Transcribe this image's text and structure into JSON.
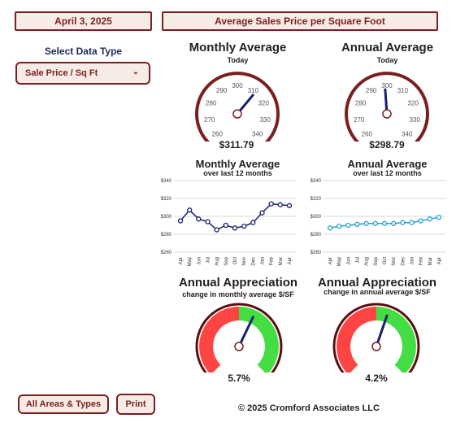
{
  "header": {
    "date": "April 3, 2025",
    "title": "Average Sales Price per Square Foot"
  },
  "sidebar": {
    "select_label": "Select Data Type",
    "dropdown_value": "Sale Price / Sq Ft"
  },
  "gauges": {
    "monthly": {
      "title": "Monthly Average",
      "subtitle": "Today",
      "ticks": [
        "260",
        "270",
        "280",
        "290",
        "300",
        "310",
        "320",
        "330",
        "340"
      ],
      "min": 260,
      "max": 340,
      "value": 311.79,
      "value_label": "$311.79"
    },
    "annual": {
      "title": "Annual Average",
      "subtitle": "Today",
      "ticks": [
        "260",
        "270",
        "280",
        "290",
        "300",
        "310",
        "320",
        "330",
        "340"
      ],
      "min": 260,
      "max": 340,
      "value": 298.79,
      "value_label": "$298.79"
    }
  },
  "line_titles": {
    "monthly": {
      "title": "Monthly Average",
      "subtitle": "over last 12 months"
    },
    "annual": {
      "title": "Annual Average",
      "subtitle": "over last 12 months"
    }
  },
  "appreciation": {
    "monthly": {
      "title": "Annual Appreciation",
      "subtitle": "change in monthly average $/SF",
      "value": 5.7,
      "value_label": "5.7%"
    },
    "annual": {
      "title": "Annual Appreciation",
      "subtitle": "change in annual average $/SF",
      "value": 4.2,
      "value_label": "4.2%"
    }
  },
  "buttons": {
    "areas": "All Areas & Types",
    "print": "Print"
  },
  "footer": "© 2025 Cromford Associates LLC",
  "colors": {
    "accent": "#7a1f1f",
    "navy": "#1a1f6e",
    "light_blue": "#2a9fd6",
    "green": "#44dd44",
    "red": "#ff4444"
  },
  "chart_data": [
    {
      "type": "line",
      "name": "monthly",
      "categories": [
        "Apr",
        "May",
        "Jun",
        "Jul",
        "Aug",
        "Sep",
        "Oct",
        "Nov",
        "Dec",
        "Jan",
        "Feb",
        "Mar",
        "Apr"
      ],
      "values": [
        295,
        307,
        297,
        294,
        285,
        290,
        287,
        289,
        293,
        304,
        314,
        313,
        312
      ],
      "yticks": [
        "$340",
        "$320",
        "$300",
        "$280",
        "$260"
      ],
      "ylim": [
        260,
        340
      ],
      "grid": true
    },
    {
      "type": "line",
      "name": "annual",
      "categories": [
        "Apr",
        "May",
        "Jun",
        "Jul",
        "Aug",
        "Sep",
        "Oct",
        "Nov",
        "Dec",
        "Jan",
        "Feb",
        "Mar",
        "Apr"
      ],
      "values": [
        287,
        289,
        290,
        291,
        292,
        292,
        292,
        292,
        293,
        293,
        295,
        297,
        299
      ],
      "yticks": [
        "$340",
        "$320",
        "$300",
        "$280",
        "$260"
      ],
      "ylim": [
        260,
        340
      ],
      "grid": true
    }
  ]
}
